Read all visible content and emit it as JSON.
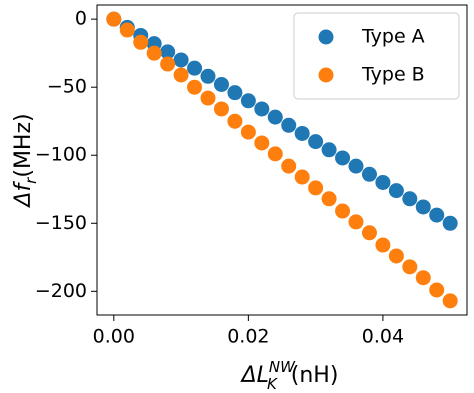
{
  "chart_data": {
    "type": "scatter",
    "xlabel": {
      "symbol": "ΔL",
      "subscript": "K",
      "superscript": "NW",
      "unit": "(nH)"
    },
    "ylabel": {
      "symbol": "Δf",
      "subscript": "r",
      "unit": "(MHz)"
    },
    "x": [
      0,
      0.002,
      0.004,
      0.006,
      0.008,
      0.01,
      0.012,
      0.014,
      0.016,
      0.018,
      0.02,
      0.022,
      0.024,
      0.026,
      0.028,
      0.03,
      0.032,
      0.034,
      0.036,
      0.038,
      0.04,
      0.042,
      0.044,
      0.046,
      0.048,
      0.05
    ],
    "series": [
      {
        "name": "Type A",
        "color": "#1f77b4",
        "values": [
          0,
          -6,
          -12,
          -18,
          -24,
          -30,
          -36,
          -42,
          -48,
          -54,
          -60,
          -66,
          -72,
          -78,
          -84,
          -90,
          -96,
          -102,
          -108,
          -114,
          -120,
          -126,
          -132,
          -138,
          -144,
          -150
        ]
      },
      {
        "name": "Type B",
        "color": "#ff7f0e",
        "values": [
          0,
          -8,
          -17,
          -25,
          -33,
          -41,
          -50,
          -58,
          -66,
          -75,
          -83,
          -91,
          -99,
          -108,
          -116,
          -124,
          -132,
          -141,
          -149,
          -157,
          -166,
          -174,
          -182,
          -190,
          -199,
          -207
        ]
      }
    ],
    "xlim": [
      -0.0025,
      0.0525
    ],
    "ylim": [
      -217.4,
      10.4
    ],
    "xticks": [
      {
        "value": 0,
        "label": "0.00"
      },
      {
        "value": 0.02,
        "label": "0.02"
      },
      {
        "value": 0.04,
        "label": "0.04"
      }
    ],
    "yticks": [
      0,
      {
        "value": -50,
        "label": "−50"
      },
      {
        "value": -100,
        "label": "−100"
      },
      {
        "value": -150,
        "label": "−150"
      },
      {
        "value": -200,
        "label": "−200"
      }
    ],
    "legend": "upper right"
  }
}
